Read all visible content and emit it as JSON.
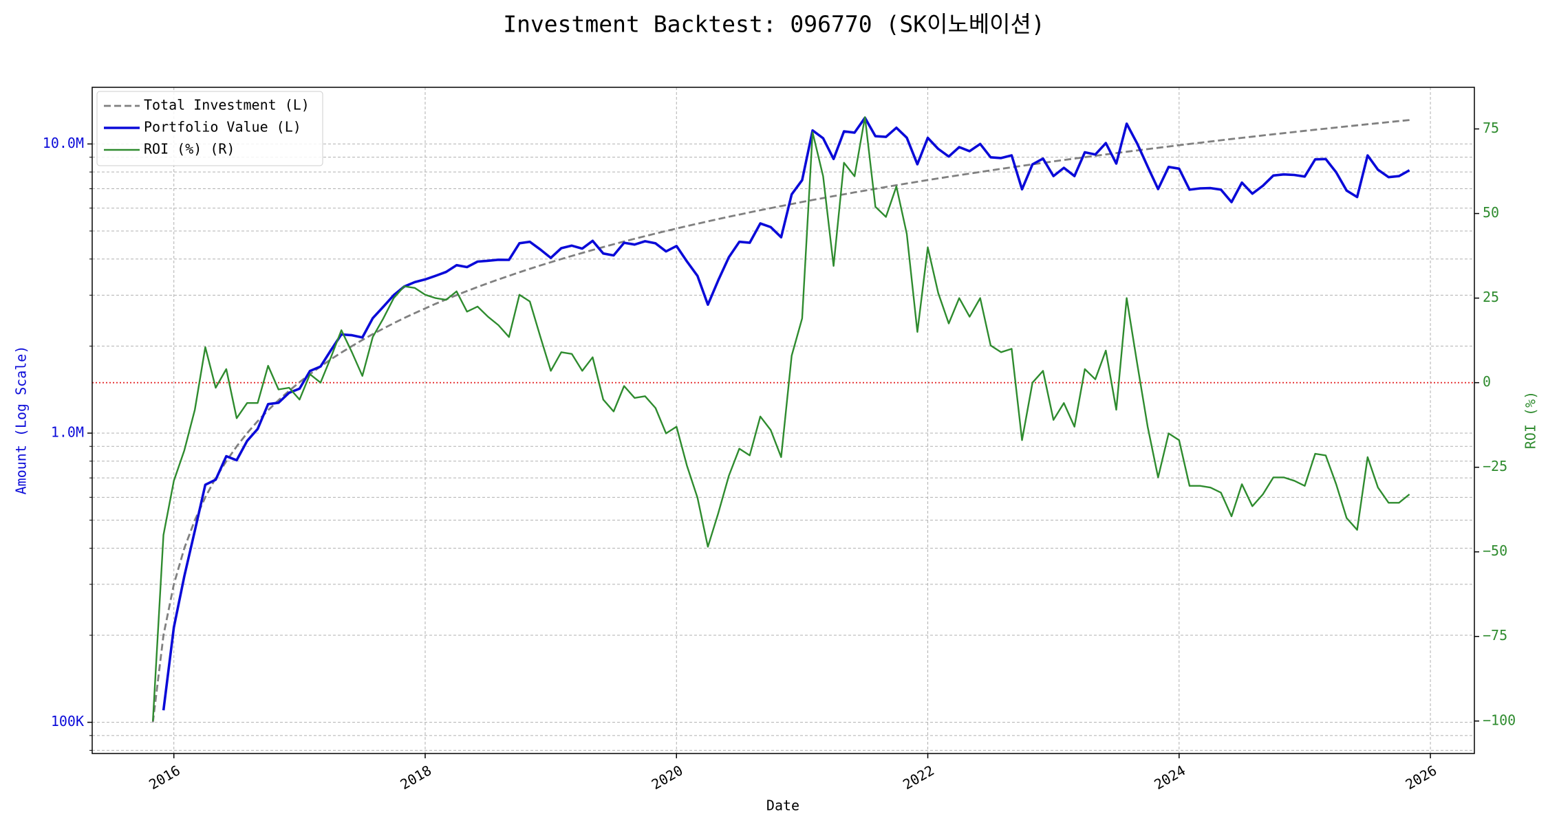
{
  "chart_data": {
    "type": "line",
    "title": "Investment Backtest: 096770 (SK이노베이션)",
    "xlabel": "Date",
    "ylabel": "Amount (Log Scale)",
    "y2label": "ROI (%)",
    "yscale": "log",
    "grid": true,
    "legend": "upper left",
    "xlim": [
      2015.35,
      2026.35
    ],
    "xticks": [
      2016,
      2018,
      2020,
      2022,
      2024,
      2026
    ],
    "ylim": [
      78000,
      15700000
    ],
    "yticks": [
      {
        "value": 100000,
        "label": "100K"
      },
      {
        "value": 1000000,
        "label": "1.0M"
      },
      {
        "value": 10000000,
        "label": "10.0M"
      }
    ],
    "y_minor_ticks": [
      80000,
      90000,
      200000,
      300000,
      400000,
      500000,
      600000,
      700000,
      800000,
      900000,
      2000000,
      3000000,
      4000000,
      5000000,
      6000000,
      7000000,
      8000000,
      9000000
    ],
    "y2lim": [
      -109.6,
      87.3
    ],
    "y2ticks": [
      {
        "value": -100,
        "label": "−100"
      },
      {
        "value": -75,
        "label": "−75"
      },
      {
        "value": -50,
        "label": "−50"
      },
      {
        "value": -25,
        "label": "−25"
      },
      0,
      25,
      50,
      75
    ],
    "reference_line": {
      "value": 0,
      "axis": "y2",
      "color": "#e31a1c"
    },
    "x": [
      2015.833,
      2015.917,
      2016.0,
      2016.083,
      2016.167,
      2016.25,
      2016.333,
      2016.417,
      2016.5,
      2016.583,
      2016.667,
      2016.75,
      2016.833,
      2016.917,
      2017.0,
      2017.083,
      2017.167,
      2017.25,
      2017.333,
      2017.417,
      2017.5,
      2017.583,
      2017.667,
      2017.75,
      2017.833,
      2017.917,
      2018.0,
      2018.083,
      2018.167,
      2018.25,
      2018.333,
      2018.417,
      2018.5,
      2018.583,
      2018.667,
      2018.75,
      2018.833,
      2018.917,
      2019.0,
      2019.083,
      2019.167,
      2019.25,
      2019.333,
      2019.417,
      2019.5,
      2019.583,
      2019.667,
      2019.75,
      2019.833,
      2019.917,
      2020.0,
      2020.083,
      2020.167,
      2020.25,
      2020.333,
      2020.417,
      2020.5,
      2020.583,
      2020.667,
      2020.75,
      2020.833,
      2020.917,
      2021.0,
      2021.083,
      2021.167,
      2021.25,
      2021.333,
      2021.417,
      2021.5,
      2021.583,
      2021.667,
      2021.75,
      2021.833,
      2021.917,
      2022.0,
      2022.083,
      2022.167,
      2022.25,
      2022.333,
      2022.417,
      2022.5,
      2022.583,
      2022.667,
      2022.75,
      2022.833,
      2022.917,
      2023.0,
      2023.083,
      2023.167,
      2023.25,
      2023.333,
      2023.417,
      2023.5,
      2023.583,
      2023.667,
      2023.75,
      2023.833,
      2023.917,
      2024.0,
      2024.083,
      2024.167,
      2024.25,
      2024.333,
      2024.417,
      2024.5,
      2024.583,
      2024.667,
      2024.75,
      2024.833,
      2024.917,
      2025.0,
      2025.083,
      2025.167,
      2025.25,
      2025.333,
      2025.417,
      2025.5,
      2025.583,
      2025.667,
      2025.75,
      2025.833
    ],
    "series": [
      {
        "name": "Total Investment (L)",
        "color": "#808080",
        "dash": true,
        "width": 2.8,
        "axis": "y",
        "values": [
          100000,
          200000,
          300000,
          400000,
          500000,
          600000,
          700000,
          800000,
          900000,
          1000000,
          1100000,
          1200000,
          1300000,
          1400000,
          1500000,
          1600000,
          1700000,
          1800000,
          1900000,
          2000000,
          2100000,
          2200000,
          2300000,
          2400000,
          2500000,
          2600000,
          2700000,
          2800000,
          2900000,
          3000000,
          3100000,
          3200000,
          3300000,
          3400000,
          3500000,
          3600000,
          3700000,
          3800000,
          3900000,
          4000000,
          4100000,
          4200000,
          4300000,
          4400000,
          4500000,
          4600000,
          4700000,
          4800000,
          4900000,
          5000000,
          5100000,
          5200000,
          5300000,
          5400000,
          5500000,
          5600000,
          5700000,
          5800000,
          5900000,
          6000000,
          6100000,
          6200000,
          6300000,
          6400000,
          6500000,
          6600000,
          6700000,
          6800000,
          6900000,
          7000000,
          7100000,
          7200000,
          7300000,
          7400000,
          7500000,
          7600000,
          7700000,
          7800000,
          7900000,
          8000000,
          8100000,
          8200000,
          8300000,
          8400000,
          8500000,
          8600000,
          8700000,
          8800000,
          8900000,
          9000000,
          9100000,
          9200000,
          9300000,
          9400000,
          9500000,
          9600000,
          9700000,
          9800000,
          9900000,
          10000000,
          10100000,
          10200000,
          10300000,
          10400000,
          10500000,
          10600000,
          10700000,
          10800000,
          10900000,
          11000000,
          11100000,
          11200000,
          11300000,
          11400000,
          11500000,
          11600000,
          11700000,
          11800000,
          11900000,
          12000000,
          12100000
        ]
      },
      {
        "name": "Portfolio Value (L)",
        "color": "#0a0ad8",
        "dash": false,
        "width": 3.6,
        "axis": "y",
        "values": [
          null,
          110000,
          213000,
          320000,
          460000,
          663000,
          690000,
          832000,
          806000,
          940000,
          1034000,
          1260000,
          1274000,
          1379000,
          1425000,
          1640000,
          1700000,
          1935000,
          2195000,
          2180000,
          2142000,
          2497000,
          2737000,
          3000000,
          3213000,
          3328000,
          3402000,
          3500000,
          3611000,
          3810000,
          3751000,
          3920000,
          3944000,
          3978000,
          3973000,
          4536000,
          4588000,
          4313000,
          4037000,
          4360000,
          4449000,
          4347000,
          4623000,
          4180000,
          4118000,
          4554000,
          4489000,
          4608000,
          4533000,
          4250000,
          4437000,
          3926000,
          3498000,
          2781000,
          3383000,
          4060000,
          4589000,
          4553000,
          5310000,
          5160000,
          4758000,
          6696000,
          7497000,
          11136000,
          10465000,
          8877000,
          11055000,
          10948000,
          12317000,
          10640000,
          10579000,
          11376000,
          10512000,
          8510000,
          10500000,
          9614000,
          9048000,
          9750000,
          9441000,
          10000000,
          8991000,
          8938000,
          9130000,
          6972000,
          8500000,
          8901000,
          7743000,
          8272000,
          7743000,
          9360000,
          9191000,
          10074000,
          8556000,
          11750000,
          10023000,
          8352000,
          6984000,
          8330000,
          8217000,
          6950000,
          7020000,
          7038000,
          6953000,
          6292000,
          7350000,
          6731000,
          7169000,
          7776000,
          7848000,
          7810000,
          7715000,
          8848000,
          8871000,
          7980000,
          6900000,
          6554000,
          9126000,
          8142000,
          7676000,
          7740000,
          8107000
        ]
      },
      {
        "name": "ROI (%) (R)",
        "color": "#2e8b2e",
        "dash": false,
        "width": 2.4,
        "axis": "y2",
        "values": [
          -100,
          -45,
          -29,
          -20,
          -8,
          10.5,
          -1.5,
          4,
          -10.5,
          -6,
          -6,
          5,
          -2,
          -1.5,
          -5,
          2.5,
          0,
          7.5,
          15.5,
          9,
          2,
          13.5,
          19,
          25,
          28.5,
          28,
          26,
          25,
          24.5,
          27,
          21,
          22.5,
          19.5,
          17,
          13.5,
          26,
          24,
          13.5,
          3.5,
          9,
          8.5,
          3.5,
          7.5,
          -5,
          -8.5,
          -1,
          -4.5,
          -4,
          -7.5,
          -15,
          -13,
          -24.5,
          -34,
          -48.5,
          -38.5,
          -27.5,
          -19.5,
          -21.5,
          -10,
          -14,
          -22,
          8,
          19,
          74,
          61,
          34.5,
          65,
          61,
          78.5,
          52,
          49,
          58,
          44,
          15,
          40,
          26.5,
          17.5,
          25,
          19.5,
          25,
          11,
          9,
          10,
          -17,
          0,
          3.5,
          -11,
          -6,
          -13,
          4,
          1,
          9.5,
          -8,
          25,
          5.5,
          -13,
          -28,
          -15,
          -17,
          -30.5,
          -30.5,
          -31,
          -32.5,
          -39.5,
          -30,
          -36.5,
          -33,
          -28,
          -28,
          -29,
          -30.5,
          -21,
          -21.5,
          -30,
          -40,
          -43.5,
          -22,
          -31,
          -35.5,
          -35.5,
          -33
        ]
      }
    ]
  }
}
